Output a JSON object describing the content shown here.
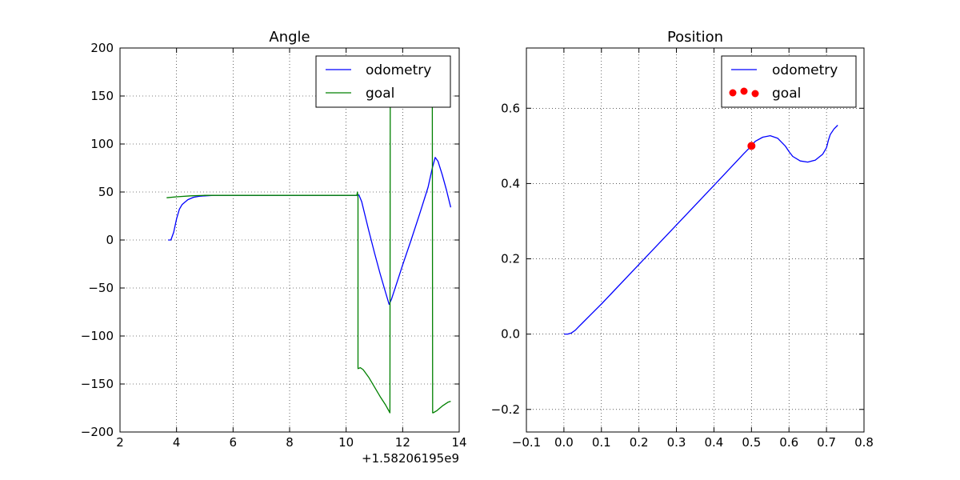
{
  "chart_data": [
    {
      "type": "line",
      "title": "Angle",
      "xlabel": "",
      "ylabel": "",
      "x_offset_label": "+1.58206195e9",
      "xlim": [
        2,
        14
      ],
      "ylim": [
        -200,
        200
      ],
      "xticks": [
        2,
        4,
        6,
        8,
        10,
        12,
        14
      ],
      "yticks": [
        -200,
        -150,
        -100,
        -50,
        0,
        50,
        100,
        150,
        200
      ],
      "xtick_labels": [
        "2",
        "4",
        "6",
        "8",
        "10",
        "12",
        "14"
      ],
      "ytick_labels": [
        "−200",
        "−150",
        "−100",
        "−50",
        "0",
        "50",
        "100",
        "150",
        "200"
      ],
      "grid": true,
      "legend": "top-right",
      "series": [
        {
          "name": "odometry",
          "color": "#0000ff",
          "marker": "line",
          "x": [
            3.7,
            3.8,
            3.9,
            4.0,
            4.1,
            4.2,
            4.4,
            4.6,
            4.8,
            5.0,
            5.3,
            6.0,
            7.0,
            8.0,
            9.0,
            10.0,
            10.35,
            10.45,
            10.55,
            10.65,
            10.8,
            11.0,
            11.2,
            11.4,
            11.52,
            11.6,
            11.8,
            12.0,
            12.3,
            12.6,
            12.9,
            13.05,
            13.15,
            13.25,
            13.4,
            13.55,
            13.7
          ],
          "y": [
            0,
            0,
            8,
            22,
            32,
            37,
            42,
            44.5,
            45.5,
            46,
            46.5,
            46.5,
            46.5,
            46.5,
            46.5,
            46.5,
            46.5,
            47,
            40,
            28,
            10,
            -13,
            -35,
            -55,
            -67,
            -62,
            -44,
            -26,
            0,
            27,
            55,
            75,
            86,
            82,
            68,
            52,
            34
          ]
        },
        {
          "name": "goal",
          "color": "#008000",
          "marker": "line",
          "x": [
            3.65,
            4.0,
            4.5,
            5.0,
            6.0,
            7.0,
            8.0,
            9.0,
            10.0,
            10.38,
            10.4,
            10.42,
            10.42,
            10.5,
            10.6,
            10.8,
            11.0,
            11.2,
            11.4,
            11.55,
            11.55,
            11.56,
            11.57,
            11.57,
            13.05,
            13.05,
            13.06,
            13.08,
            13.08,
            13.2,
            13.4,
            13.6,
            13.7
          ],
          "y": [
            44,
            45,
            46,
            46.5,
            46.5,
            46.5,
            46.5,
            46.5,
            46.5,
            46.5,
            50,
            44,
            -134,
            -133,
            -135,
            -143,
            -153,
            -163,
            -172,
            -180,
            -180,
            140,
            140,
            140,
            140,
            140,
            -180,
            -180,
            -180,
            -178,
            -173,
            -169,
            -168
          ]
        }
      ]
    },
    {
      "type": "line",
      "title": "Position",
      "xlabel": "",
      "ylabel": "",
      "xlim": [
        -0.1,
        0.8
      ],
      "ylim": [
        -0.26,
        0.76
      ],
      "xticks": [
        -0.1,
        0.0,
        0.1,
        0.2,
        0.3,
        0.4,
        0.5,
        0.6,
        0.7,
        0.8
      ],
      "yticks": [
        -0.2,
        0.0,
        0.2,
        0.4,
        0.6
      ],
      "xtick_labels": [
        "−0.1",
        "0.0",
        "0.1",
        "0.2",
        "0.3",
        "0.4",
        "0.5",
        "0.6",
        "0.7",
        "0.8"
      ],
      "ytick_labels": [
        "−0.2",
        "0.0",
        "0.2",
        "0.4",
        "0.6"
      ],
      "grid": true,
      "legend": "top-right",
      "series": [
        {
          "name": "odometry",
          "color": "#0000ff",
          "marker": "line",
          "x": [
            0.0,
            0.01,
            0.02,
            0.03,
            0.04,
            0.05,
            0.07,
            0.1,
            0.2,
            0.3,
            0.4,
            0.48,
            0.5,
            0.51,
            0.53,
            0.55,
            0.57,
            0.59,
            0.6,
            0.61,
            0.63,
            0.65,
            0.67,
            0.69,
            0.7,
            0.705,
            0.71,
            0.72,
            0.73
          ],
          "y": [
            0.0,
            0.0,
            0.003,
            0.01,
            0.02,
            0.03,
            0.05,
            0.08,
            0.185,
            0.29,
            0.395,
            0.48,
            0.5,
            0.512,
            0.523,
            0.527,
            0.52,
            0.5,
            0.485,
            0.472,
            0.46,
            0.457,
            0.462,
            0.478,
            0.495,
            0.515,
            0.53,
            0.545,
            0.555
          ]
        },
        {
          "name": "goal",
          "color": "#ff0000",
          "marker": "dot",
          "x": [
            0.5
          ],
          "y": [
            0.5
          ]
        }
      ]
    }
  ]
}
